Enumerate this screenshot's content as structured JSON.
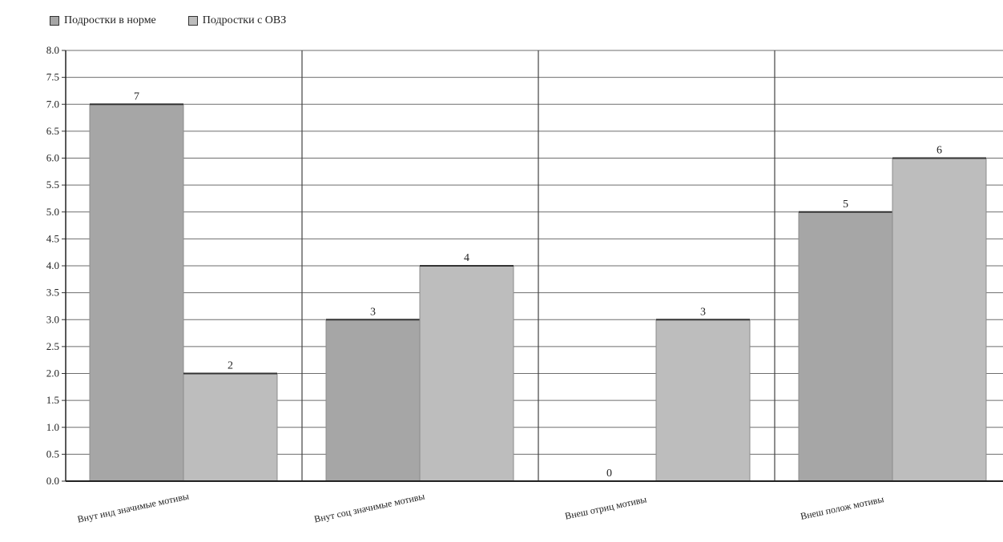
{
  "chart_data": {
    "type": "bar",
    "title": "",
    "xlabel": "",
    "ylabel": "",
    "categories": [
      "Внут инд значимые мотивы",
      "Внут соц значимые мотивы",
      "Внеш  отриц мотивы",
      "Внеш полож мотивы"
    ],
    "series": [
      {
        "name": "Подростки в норме",
        "values": [
          7,
          3,
          0,
          5
        ],
        "color": "#a6a6a6"
      },
      {
        "name": "Подростки с ОВЗ",
        "values": [
          2,
          4,
          3,
          6
        ],
        "color": "#bdbdbd"
      }
    ],
    "data_labels": [
      [
        "7",
        "3",
        "0",
        "5"
      ],
      [
        "2",
        "4",
        "3",
        "6"
      ]
    ],
    "ylim": [
      0,
      8
    ],
    "ytick_step": 0.5,
    "yticks": [
      "0.0",
      "0.5",
      "1.0",
      "1.5",
      "2.0",
      "2.5",
      "3.0",
      "3.5",
      "4.0",
      "4.5",
      "5.0",
      "5.5",
      "6.0",
      "6.5",
      "7.0",
      "7.5",
      "8.0"
    ],
    "grid": true,
    "legend_position": "top-left"
  }
}
